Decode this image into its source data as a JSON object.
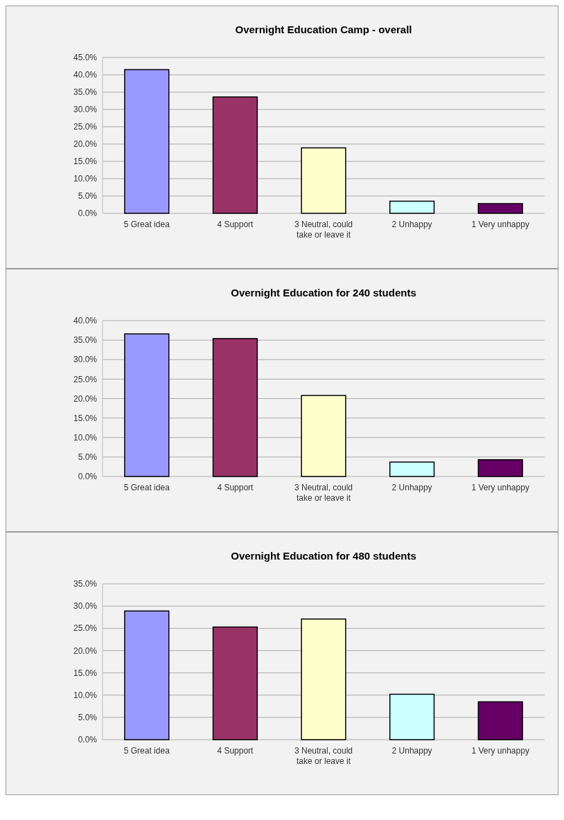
{
  "chart_data": [
    {
      "type": "bar",
      "title": "Overnight Education Camp - overall",
      "categories": [
        "5 Great idea",
        "4 Support",
        "3 Neutral, could take or leave it",
        "2 Unhappy",
        "1 Very unhappy"
      ],
      "values": [
        41.5,
        33.6,
        18.9,
        3.5,
        2.8
      ],
      "colors": [
        "#9999ff",
        "#993366",
        "#ffffcc",
        "#ccffff",
        "#660066"
      ],
      "ylim": [
        0,
        45
      ],
      "yticks": [
        {
          "value": 0,
          "label": "0.0%"
        },
        {
          "value": 5,
          "label": "5.0%"
        },
        {
          "value": 10,
          "label": "10.0%"
        },
        {
          "value": 15,
          "label": "15.0%"
        },
        {
          "value": 20,
          "label": "20.0%"
        },
        {
          "value": 25,
          "label": "25.0%"
        },
        {
          "value": 30,
          "label": "30.0%"
        },
        {
          "value": 35,
          "label": "35.0%"
        },
        {
          "value": 40,
          "label": "40.0%"
        },
        {
          "value": 45,
          "label": "45.0%"
        }
      ],
      "grid": "y"
    },
    {
      "type": "bar",
      "title": "Overnight Education for 240 students",
      "categories": [
        "5 Great idea",
        "4 Support",
        "3 Neutral, could take or leave it",
        "2 Unhappy",
        "1 Very unhappy"
      ],
      "values": [
        36.6,
        35.4,
        20.8,
        3.7,
        4.3
      ],
      "colors": [
        "#9999ff",
        "#993366",
        "#ffffcc",
        "#ccffff",
        "#660066"
      ],
      "ylim": [
        0,
        40
      ],
      "yticks": [
        {
          "value": 0,
          "label": "0.0%"
        },
        {
          "value": 5,
          "label": "5.0%"
        },
        {
          "value": 10,
          "label": "10.0%"
        },
        {
          "value": 15,
          "label": "15.0%"
        },
        {
          "value": 20,
          "label": "20.0%"
        },
        {
          "value": 25,
          "label": "25.0%"
        },
        {
          "value": 30,
          "label": "30.0%"
        },
        {
          "value": 35,
          "label": "35.0%"
        },
        {
          "value": 40,
          "label": "40.0%"
        }
      ],
      "grid": "y"
    },
    {
      "type": "bar",
      "title": "Overnight Education for 480 students",
      "categories": [
        "5 Great idea",
        "4 Support",
        "3 Neutral, could take or leave it",
        "2 Unhappy",
        "1 Very unhappy"
      ],
      "values": [
        28.9,
        25.3,
        27.1,
        10.2,
        8.5
      ],
      "colors": [
        "#9999ff",
        "#993366",
        "#ffffcc",
        "#ccffff",
        "#660066"
      ],
      "ylim": [
        0,
        35
      ],
      "yticks": [
        {
          "value": 0,
          "label": "0.0%"
        },
        {
          "value": 5,
          "label": "5.0%"
        },
        {
          "value": 10,
          "label": "10.0%"
        },
        {
          "value": 15,
          "label": "15.0%"
        },
        {
          "value": 20,
          "label": "20.0%"
        },
        {
          "value": 25,
          "label": "25.0%"
        },
        {
          "value": 30,
          "label": "30.0%"
        },
        {
          "value": 35,
          "label": "35.0%"
        }
      ],
      "grid": "y"
    }
  ]
}
